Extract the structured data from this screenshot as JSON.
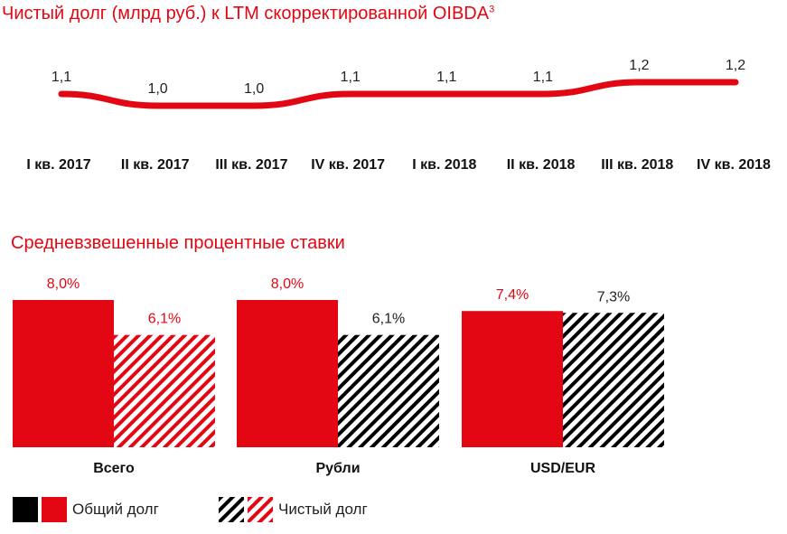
{
  "titles": {
    "chart1_title": "Чистый долг (млрд руб.) к LTM скорректированной OIBDA",
    "chart1_footnote": "3",
    "chart2_title": "Средневзвешенные процентные ставки"
  },
  "legend": {
    "total_debt": "Общий долг",
    "net_debt": "Чистый долг"
  },
  "colors": {
    "accent": "#e30613",
    "black": "#000000"
  },
  "chart_data": [
    {
      "type": "line",
      "title": "Чистый долг (млрд руб.) к LTM скорректированной OIBDA",
      "categories": [
        "I кв. 2017",
        "II кв. 2017",
        "III кв. 2017",
        "IV кв. 2017",
        "I кв. 2018",
        "II кв. 2018",
        "III кв. 2018",
        "IV кв. 2018"
      ],
      "values": [
        1.1,
        1.0,
        1.0,
        1.1,
        1.1,
        1.1,
        1.2,
        1.2
      ],
      "value_labels": [
        "1,1",
        "1,0",
        "1,0",
        "1,1",
        "1,1",
        "1,1",
        "1,2",
        "1,2"
      ],
      "ylim": [
        0.9,
        1.3
      ]
    },
    {
      "type": "bar",
      "title": "Средневзвешенные процентные ставки",
      "categories": [
        "Всего",
        "Рубли",
        "USD/EUR"
      ],
      "series": [
        {
          "name": "Общий долг",
          "values": [
            8.0,
            8.0,
            7.4
          ],
          "value_labels": [
            "8,0%",
            "8,0%",
            "7,4%"
          ]
        },
        {
          "name": "Чистый долг",
          "values": [
            6.1,
            6.1,
            7.3
          ],
          "value_labels": [
            "6,1%",
            "6,1%",
            "7,3%"
          ]
        }
      ],
      "ylim": [
        0,
        8.0
      ]
    }
  ]
}
